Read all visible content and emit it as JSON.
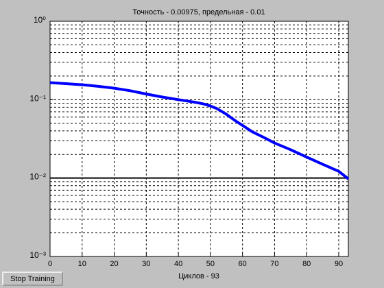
{
  "chart_data": {
    "type": "line",
    "title": "Точность - 0.00975, предельная - 0.01",
    "x_label": "Циклов - 93",
    "x": [
      0,
      5,
      10,
      15,
      20,
      25,
      30,
      35,
      40,
      45,
      48,
      50,
      52,
      55,
      58,
      60,
      63,
      66,
      70,
      75,
      80,
      85,
      90,
      93
    ],
    "values": [
      0.165,
      0.16,
      0.155,
      0.148,
      0.14,
      0.13,
      0.118,
      0.108,
      0.1,
      0.093,
      0.088,
      0.083,
      0.077,
      0.065,
      0.053,
      0.047,
      0.039,
      0.034,
      0.028,
      0.023,
      0.0185,
      0.015,
      0.0122,
      0.00975
    ],
    "color": "#0000ff",
    "goal": 0.01,
    "goal_color": "#000000",
    "xlim": [
      0,
      93
    ],
    "xticks": [
      0,
      10,
      20,
      30,
      40,
      50,
      60,
      70,
      80,
      90
    ],
    "ylim": [
      0.001,
      1
    ],
    "log_y": true,
    "yticks": [
      {
        "value": 0.001,
        "label": "10⁻³"
      },
      {
        "value": 0.01,
        "label": "10⁻²"
      },
      {
        "value": 0.1,
        "label": "10⁻¹"
      },
      {
        "value": 1,
        "label": "10⁰"
      }
    ],
    "grid": true,
    "minor_grid": true
  },
  "button": {
    "label": "Stop Training"
  }
}
